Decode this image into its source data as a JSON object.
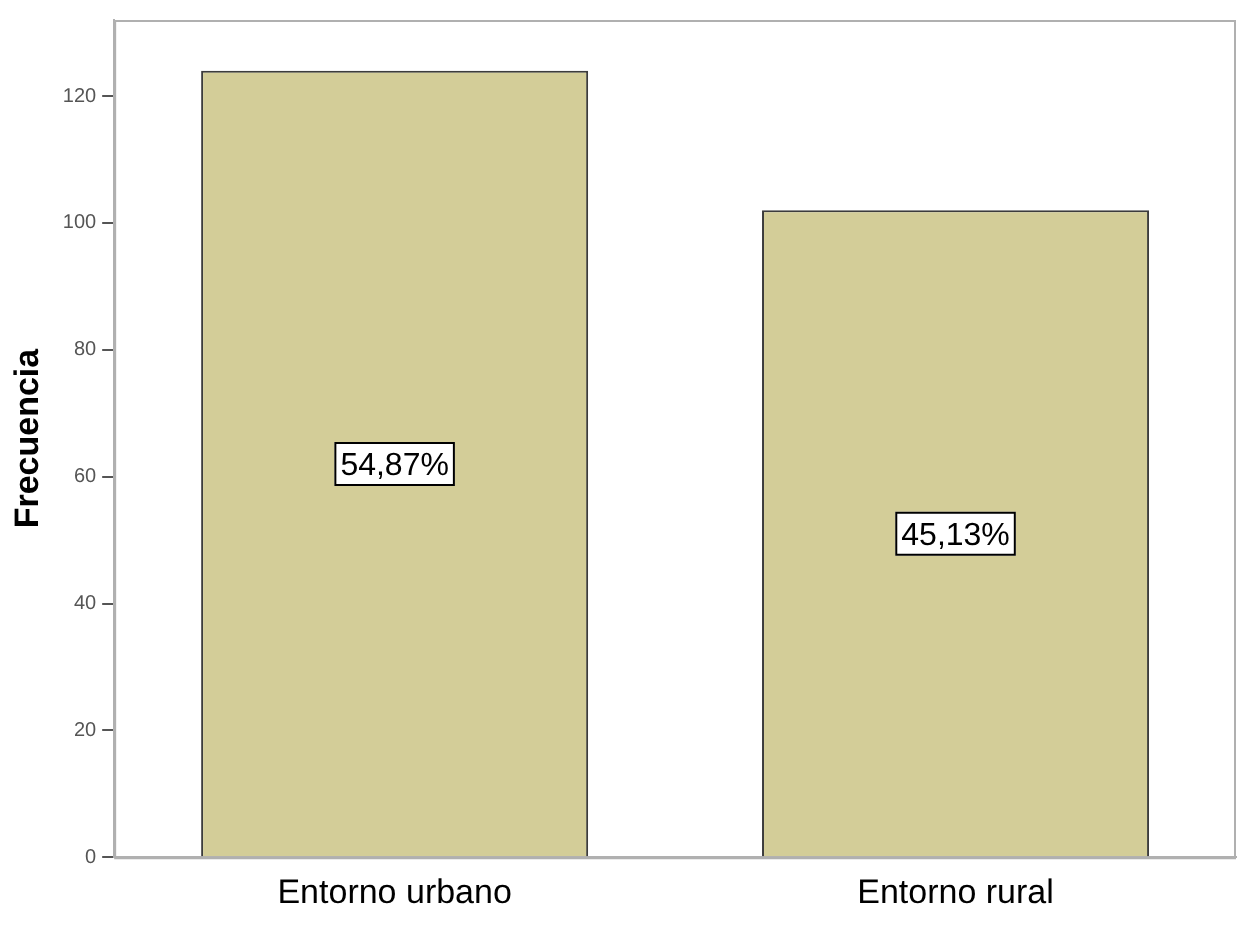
{
  "chart_data": {
    "type": "bar",
    "ylabel": "Frecuencia",
    "categories": [
      "Entorno urbano",
      "Entorno rural"
    ],
    "values": [
      124,
      102
    ],
    "annotations": [
      "54,87%",
      "45,13%"
    ],
    "color": "#d3cd98",
    "ylim": [
      0,
      132
    ],
    "yticks": [
      0,
      20,
      40,
      60,
      80,
      100,
      120
    ],
    "grid": false,
    "legend": false
  }
}
